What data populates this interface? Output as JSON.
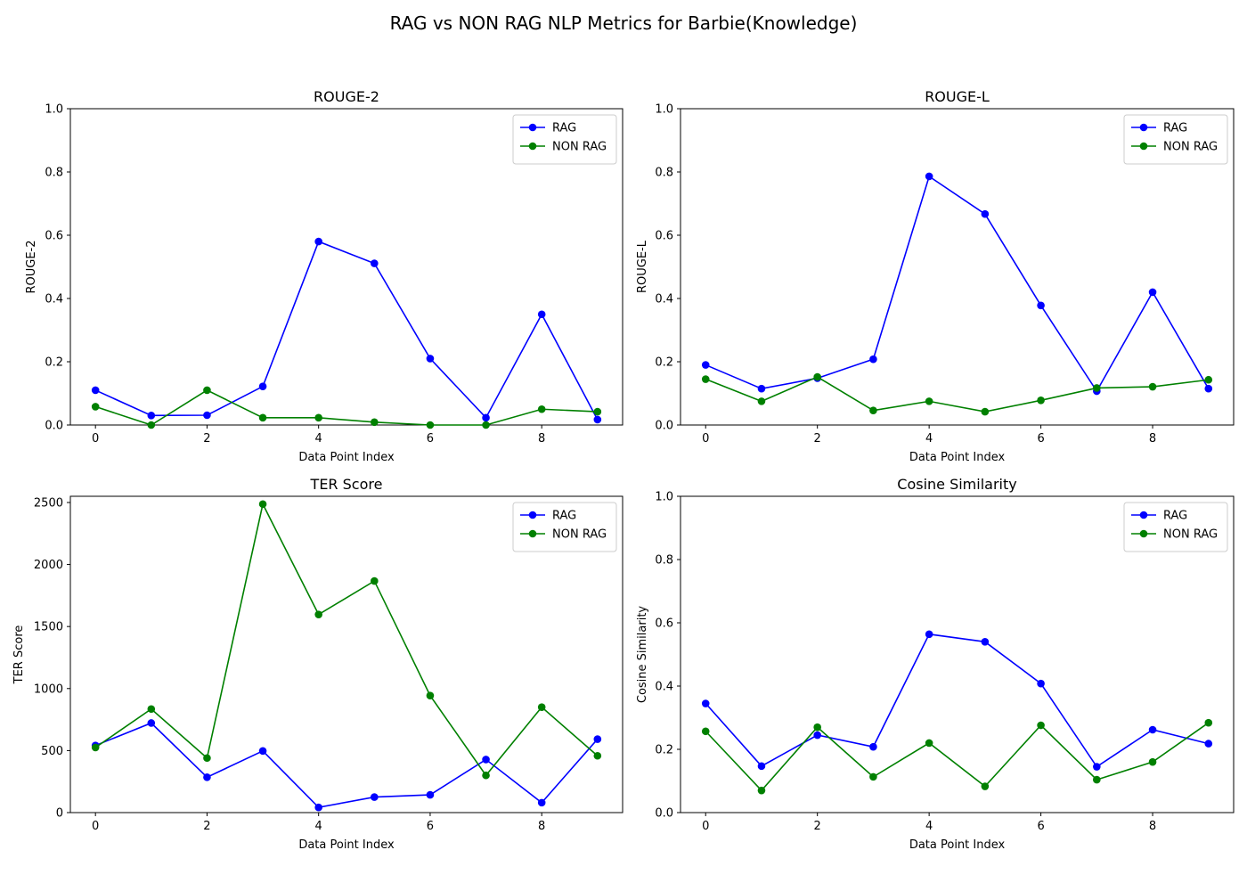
{
  "figure": {
    "title": "RAG vs NON RAG NLP Metrics for Barbie(Knowledge)"
  },
  "colors": {
    "RAG": "#0000ff",
    "NON RAG": "#008000",
    "axis": "#000000"
  },
  "chart_data": [
    {
      "type": "line",
      "title": "ROUGE-2",
      "xlabel": "Data Point Index",
      "ylabel": "ROUGE-2",
      "x": [
        0,
        1,
        2,
        3,
        4,
        5,
        6,
        7,
        8,
        9
      ],
      "xlim": [
        -0.45,
        9.45
      ],
      "ylim": [
        0,
        1
      ],
      "xticks": [
        "0",
        "2",
        "4",
        "6",
        "8"
      ],
      "yticks": [
        "0.0",
        "0.2",
        "0.4",
        "0.6",
        "0.8",
        "1.0"
      ],
      "grid": false,
      "legend": "top-right",
      "series": [
        {
          "name": "RAG",
          "values": [
            0.11,
            0.03,
            0.031,
            0.122,
            0.58,
            0.511,
            0.21,
            0.023,
            0.35,
            0.017
          ]
        },
        {
          "name": "NON RAG",
          "values": [
            0.058,
            0.0,
            0.11,
            0.023,
            0.023,
            0.009,
            0.0,
            0.0,
            0.05,
            0.042
          ]
        }
      ]
    },
    {
      "type": "line",
      "title": "ROUGE-L",
      "xlabel": "Data Point Index",
      "ylabel": "ROUGE-L",
      "x": [
        0,
        1,
        2,
        3,
        4,
        5,
        6,
        7,
        8,
        9
      ],
      "xlim": [
        -0.45,
        9.45
      ],
      "ylim": [
        0,
        1
      ],
      "xticks": [
        "0",
        "2",
        "4",
        "6",
        "8"
      ],
      "yticks": [
        "0.0",
        "0.2",
        "0.4",
        "0.6",
        "0.8",
        "1.0"
      ],
      "grid": false,
      "legend": "top-right",
      "series": [
        {
          "name": "RAG",
          "values": [
            0.19,
            0.115,
            0.148,
            0.208,
            0.786,
            0.667,
            0.378,
            0.107,
            0.42,
            0.115
          ]
        },
        {
          "name": "NON RAG",
          "values": [
            0.145,
            0.075,
            0.152,
            0.046,
            0.075,
            0.042,
            0.078,
            0.117,
            0.121,
            0.143
          ]
        }
      ]
    },
    {
      "type": "line",
      "title": "TER Score",
      "xlabel": "Data Point Index",
      "ylabel": "TER Score",
      "x": [
        0,
        1,
        2,
        3,
        4,
        5,
        6,
        7,
        8,
        9
      ],
      "xlim": [
        -0.45,
        9.45
      ],
      "ylim": [
        0,
        2550
      ],
      "xticks": [
        "0",
        "2",
        "4",
        "6",
        "8"
      ],
      "yticks": [
        "0",
        "500",
        "1000",
        "1500",
        "2000",
        "2500"
      ],
      "grid": false,
      "legend": "top-right",
      "series": [
        {
          "name": "RAG",
          "values": [
            541,
            722,
            285,
            497,
            42,
            125,
            143,
            428,
            80,
            592
          ]
        },
        {
          "name": "NON RAG",
          "values": [
            525,
            835,
            440,
            2487,
            1597,
            1867,
            943,
            300,
            850,
            458
          ]
        }
      ]
    },
    {
      "type": "line",
      "title": "Cosine Similarity",
      "xlabel": "Data Point Index",
      "ylabel": "Cosine Similarity",
      "x": [
        0,
        1,
        2,
        3,
        4,
        5,
        6,
        7,
        8,
        9
      ],
      "xlim": [
        -0.45,
        9.45
      ],
      "ylim": [
        0,
        1
      ],
      "xticks": [
        "0",
        "2",
        "4",
        "6",
        "8"
      ],
      "yticks": [
        "0.0",
        "0.2",
        "0.4",
        "0.6",
        "0.8",
        "1.0"
      ],
      "grid": false,
      "legend": "top-right",
      "series": [
        {
          "name": "RAG",
          "values": [
            0.345,
            0.147,
            0.245,
            0.208,
            0.564,
            0.54,
            0.408,
            0.145,
            0.262,
            0.218
          ]
        },
        {
          "name": "NON RAG",
          "values": [
            0.257,
            0.07,
            0.27,
            0.113,
            0.22,
            0.083,
            0.276,
            0.104,
            0.16,
            0.284
          ]
        }
      ]
    }
  ]
}
